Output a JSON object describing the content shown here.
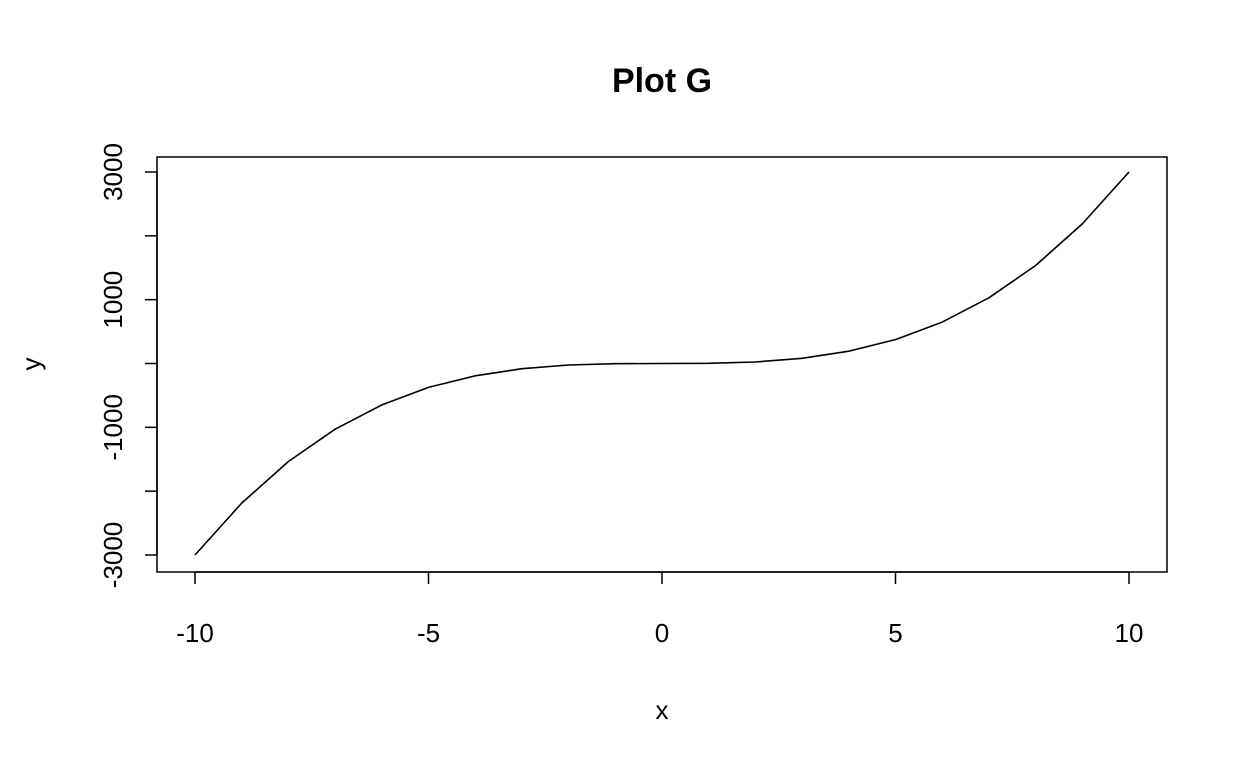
{
  "chart_data": {
    "type": "line",
    "title": "Plot G",
    "xlabel": "x",
    "ylabel": "y",
    "xlim": [
      -10,
      10
    ],
    "ylim": [
      -3000,
      3000
    ],
    "x_ticks": [
      -10,
      -5,
      0,
      5,
      10
    ],
    "y_ticks": [
      -3000,
      -2000,
      -1000,
      0,
      1000,
      2000,
      3000
    ],
    "y_tick_labels": [
      "-3000",
      "",
      "-1000",
      "",
      "1000",
      "",
      "3000"
    ],
    "grid": false,
    "legend": "none",
    "line_color": "#000000",
    "series": [
      {
        "x": [
          -10,
          -9,
          -8,
          -7,
          -6,
          -5,
          -4,
          -3,
          -2,
          -1,
          0,
          1,
          2,
          3,
          4,
          5,
          6,
          7,
          8,
          9,
          10
        ],
        "y": [
          -3000,
          -2187,
          -1536,
          -1029,
          -648,
          -375,
          -192,
          -81,
          -24,
          -3,
          0,
          3,
          24,
          81,
          192,
          375,
          648,
          1029,
          1536,
          2187,
          3000
        ]
      }
    ]
  }
}
